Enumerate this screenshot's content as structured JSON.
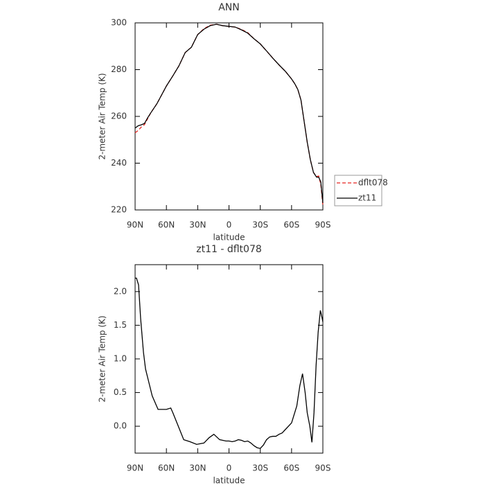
{
  "chart_data": [
    {
      "type": "line",
      "title": "ANN",
      "x_label": "latitude",
      "y_label": "2-meter Air Temp (K)",
      "x": [
        90,
        87,
        84,
        81,
        78,
        75,
        72,
        69,
        66,
        63,
        60,
        54,
        48,
        42,
        36,
        30,
        24,
        18,
        12,
        6,
        0,
        -6,
        -12,
        -18,
        -24,
        -30,
        -36,
        -42,
        -48,
        -54,
        -60,
        -63,
        -66,
        -69,
        -72,
        -75,
        -78,
        -81,
        -84,
        -86,
        -88,
        -90
      ],
      "series": [
        {
          "name": "dflt078",
          "color": "#e8231d",
          "dash": "5,3",
          "values": [
            253,
            254,
            255.5,
            256.5,
            259,
            261.5,
            263.5,
            265.5,
            268,
            270.5,
            273,
            277.2,
            281.6,
            287.3,
            289.6,
            295,
            297.5,
            299,
            299.4,
            298.8,
            298.5,
            298.2,
            297.2,
            295.8,
            293.2,
            291,
            288,
            284.9,
            282,
            279.3,
            276,
            274,
            271.5,
            267,
            258,
            249,
            241.5,
            236,
            234.3,
            234.5,
            231,
            222
          ]
        },
        {
          "name": "zt11",
          "color": "#000000",
          "values": [
            255,
            256,
            256.4,
            257,
            259.4,
            261.5,
            263.5,
            265.5,
            268,
            270.5,
            273,
            277.2,
            281.6,
            287.3,
            289.6,
            295,
            297.3,
            298.8,
            299.4,
            298.8,
            298.5,
            298.2,
            297,
            295.6,
            293.2,
            291,
            288,
            284.9,
            282,
            279.3,
            276,
            274,
            271.5,
            267,
            258,
            249,
            241.5,
            236,
            234,
            234,
            232,
            223
          ]
        }
      ],
      "xlim": [
        90,
        -90
      ],
      "xticks": [
        {
          "value": 90,
          "label": "90N"
        },
        {
          "value": 60,
          "label": "60N"
        },
        {
          "value": 30,
          "label": "30N"
        },
        0,
        {
          "value": -30,
          "label": "30S"
        },
        {
          "value": -60,
          "label": "60S"
        },
        {
          "value": -90,
          "label": "90S"
        }
      ],
      "ylim": [
        220,
        300
      ],
      "yticks": [
        220,
        240,
        260,
        280,
        300
      ],
      "legend": "right"
    },
    {
      "type": "line",
      "title": "zt11 - dflt078",
      "x_label": "latitude",
      "y_label": "2-meter Air Temp (K)",
      "x": [
        90,
        88.7,
        86.7,
        84.7,
        82,
        80,
        76.8,
        73.6,
        68,
        60,
        55.8,
        53.8,
        48.6,
        43.4,
        37.4,
        31,
        24,
        19,
        14.5,
        9,
        6,
        3,
        0,
        -3,
        -6,
        -9,
        -12,
        -15,
        -18,
        -21,
        -24,
        -27,
        -30,
        -33,
        -36,
        -39,
        -42,
        -45,
        -48,
        -51,
        -54,
        -57,
        -60,
        -65,
        -67.9,
        -70.5,
        -73,
        -75,
        -77.5,
        -79.5,
        -81.5,
        -83.5,
        -85.5,
        -87.6,
        -88.7,
        -90
      ],
      "series": [
        {
          "color": "#000000",
          "values": [
            2.2,
            2.2,
            2.1,
            1.6,
            1.1,
            0.85,
            0.65,
            0.45,
            0.25,
            0.25,
            0.27,
            0.2,
            0.0,
            -0.2,
            -0.23,
            -0.27,
            -0.25,
            -0.17,
            -0.12,
            -0.2,
            -0.21,
            -0.22,
            -0.22,
            -0.23,
            -0.22,
            -0.2,
            -0.21,
            -0.23,
            -0.22,
            -0.25,
            -0.29,
            -0.32,
            -0.33,
            -0.28,
            -0.2,
            -0.16,
            -0.15,
            -0.15,
            -0.12,
            -0.1,
            -0.05,
            0.0,
            0.05,
            0.3,
            0.6,
            0.78,
            0.5,
            0.2,
            0.0,
            -0.24,
            0.2,
            0.9,
            1.4,
            1.72,
            1.65,
            1.55
          ]
        }
      ],
      "xlim": [
        90,
        -90
      ],
      "xticks": [
        {
          "value": 90,
          "label": "90N"
        },
        {
          "value": 60,
          "label": "60N"
        },
        {
          "value": 30,
          "label": "30N"
        },
        0,
        {
          "value": -30,
          "label": "30S"
        },
        {
          "value": -60,
          "label": "60S"
        },
        {
          "value": -90,
          "label": "90S"
        }
      ],
      "ylim": [
        -0.4,
        2.4
      ],
      "yticks": [
        {
          "value": 0,
          "label": "0.0"
        },
        0.5,
        {
          "value": 1,
          "label": "1.0"
        },
        1.5,
        {
          "value": 2,
          "label": "2.0"
        }
      ]
    }
  ]
}
